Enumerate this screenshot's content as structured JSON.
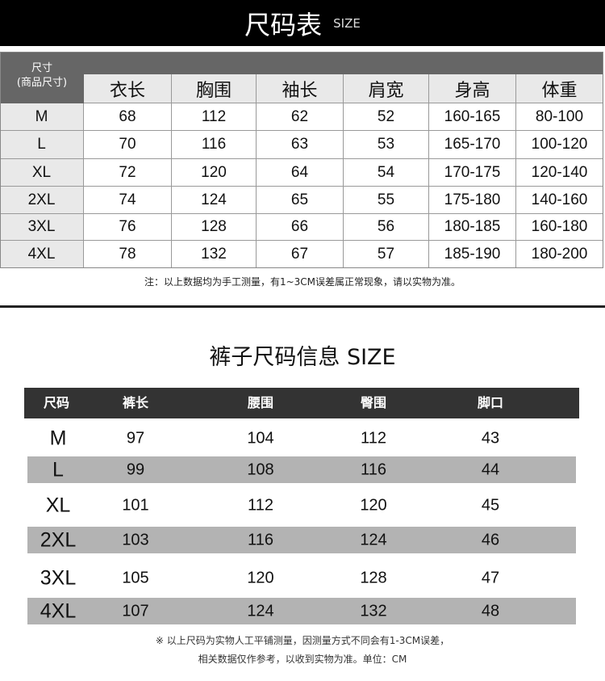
{
  "top": {
    "title": "尺码表",
    "subtitle": "SIZE"
  },
  "tops_table": {
    "corner": [
      "尺寸",
      "(商品尺寸)"
    ],
    "headers": [
      "衣长",
      "胸围",
      "袖长",
      "肩宽",
      "身高",
      "体重"
    ],
    "rows": [
      [
        "M",
        "68",
        "112",
        "62",
        "52",
        "160-165",
        "80-100"
      ],
      [
        "L",
        "70",
        "116",
        "63",
        "53",
        "165-170",
        "100-120"
      ],
      [
        "XL",
        "72",
        "120",
        "64",
        "54",
        "170-175",
        "120-140"
      ],
      [
        "2XL",
        "74",
        "124",
        "65",
        "55",
        "175-180",
        "140-160"
      ],
      [
        "3XL",
        "76",
        "128",
        "66",
        "56",
        "180-185",
        "160-180"
      ],
      [
        "4XL",
        "78",
        "132",
        "67",
        "57",
        "185-190",
        "180-200"
      ]
    ],
    "note": "注：以上数据均为手工测量，有1~3CM误差属正常现象，请以实物为准。"
  },
  "pants": {
    "title": "裤子尺码信息 SIZE",
    "headers": [
      "尺码",
      "裤长",
      "腰围",
      "臀围",
      "脚口"
    ],
    "rows": [
      [
        "M",
        "97",
        "104",
        "112",
        "43"
      ],
      [
        "L",
        "99",
        "108",
        "116",
        "44"
      ],
      [
        "XL",
        "101",
        "112",
        "120",
        "45"
      ],
      [
        "2XL",
        "103",
        "116",
        "124",
        "46"
      ],
      [
        "3XL",
        "105",
        "120",
        "128",
        "47"
      ],
      [
        "4XL",
        "107",
        "124",
        "132",
        "48"
      ]
    ],
    "note_lines": [
      "※ 以上尺码为实物人工平铺测量，因测量方式不同会有1-3CM误差，",
      "相关数据仅作参考，以收到实物为准。单位：CM"
    ]
  },
  "colors": {
    "header_dark": "#333333",
    "band_gray": "#b3b3b3",
    "table_header": "#666666"
  }
}
